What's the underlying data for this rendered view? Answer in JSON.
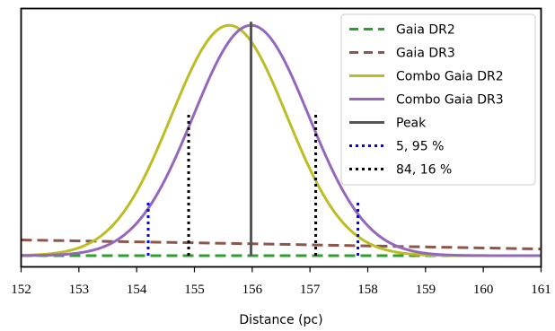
{
  "chart_data": {
    "type": "line",
    "title": "",
    "xlabel": "Distance (pc)",
    "ylabel": "",
    "xlim": [
      152,
      161
    ],
    "ylim": [
      0,
      1.0
    ],
    "x_ticks": [
      152,
      153,
      154,
      155,
      156,
      157,
      158,
      159,
      160,
      161
    ],
    "grid": false,
    "legend_position": "top-right",
    "series": [
      {
        "name": "Gaia DR2",
        "style": "dashed",
        "color": "#2ca02c",
        "x": [
          152.0,
          152.6,
          161.0
        ],
        "y": [
          0.0,
          0.0,
          0.0
        ]
      },
      {
        "name": "Gaia DR3",
        "style": "dashed",
        "color": "#8c564b",
        "x": [
          152.0,
          154.0,
          156.0,
          158.0,
          161.0
        ],
        "y": [
          0.066,
          0.058,
          0.05,
          0.041,
          0.028
        ]
      },
      {
        "name": "Combo Gaia DR2",
        "style": "solid",
        "color": "#bcbd22",
        "gaussian": {
          "peak_x": 155.6,
          "sigma": 1.0,
          "peak_y": 0.969
        }
      },
      {
        "name": "Combo Gaia DR3",
        "style": "solid",
        "color": "#9467bd",
        "gaussian": {
          "peak_x": 155.98,
          "sigma": 1.0,
          "peak_y": 0.969
        }
      },
      {
        "name": "Peak",
        "style": "vline",
        "color": "#555555",
        "x": [
          155.98,
          155.98
        ],
        "y": [
          0.0,
          0.969
        ]
      },
      {
        "name": "5, 95 %",
        "style": "dotted",
        "color": "#0000ff",
        "segments": [
          {
            "x": 154.2,
            "y_top": 0.236
          },
          {
            "x": 157.83,
            "y_top": 0.236
          }
        ]
      },
      {
        "name": "84, 16 %",
        "style": "dotted",
        "color": "#000000",
        "segments": [
          {
            "x": 154.9,
            "y_top": 0.608
          },
          {
            "x": 157.1,
            "y_top": 0.608
          }
        ]
      }
    ]
  }
}
